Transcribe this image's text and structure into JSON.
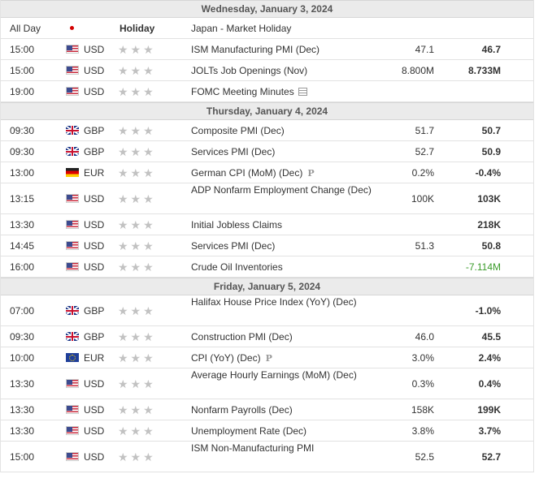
{
  "days": [
    {
      "header": "Wednesday, January 3, 2024",
      "events": [
        {
          "time": "All Day",
          "flag": "jp",
          "currency": "",
          "holiday": "Holiday",
          "event": "Japan - Market Holiday",
          "actual": "",
          "forecast": ""
        },
        {
          "time": "15:00",
          "flag": "us",
          "currency": "USD",
          "event": "ISM Manufacturing PMI (Dec)",
          "actual": "47.1",
          "forecast": "46.7"
        },
        {
          "time": "15:00",
          "flag": "us",
          "currency": "USD",
          "event": "JOLTs Job Openings (Nov)",
          "actual": "8.800M",
          "forecast": "8.733M"
        },
        {
          "time": "19:00",
          "flag": "us",
          "currency": "USD",
          "event": "FOMC Meeting Minutes",
          "actual": "",
          "forecast": "",
          "icon": "document-icon"
        }
      ]
    },
    {
      "header": "Thursday, January 4, 2024",
      "events": [
        {
          "time": "09:30",
          "flag": "gb",
          "currency": "GBP",
          "event": "Composite PMI (Dec)",
          "actual": "51.7",
          "forecast": "50.7"
        },
        {
          "time": "09:30",
          "flag": "gb",
          "currency": "GBP",
          "event": "Services PMI (Dec)",
          "actual": "52.7",
          "forecast": "50.9"
        },
        {
          "time": "13:00",
          "flag": "de",
          "currency": "EUR",
          "event": "German CPI (MoM) (Dec)",
          "actual": "0.2%",
          "forecast": "-0.4%",
          "icon": "preliminary-icon"
        },
        {
          "time": "13:15",
          "flag": "us",
          "currency": "USD",
          "event": "ADP Nonfarm Employment Change (Dec)",
          "actual": "100K",
          "forecast": "103K",
          "tall": true
        },
        {
          "time": "13:30",
          "flag": "us",
          "currency": "USD",
          "event": "Initial Jobless Claims",
          "actual": "",
          "forecast": "218K"
        },
        {
          "time": "14:45",
          "flag": "us",
          "currency": "USD",
          "event": "Services PMI (Dec)",
          "actual": "51.3",
          "forecast": "50.8"
        },
        {
          "time": "16:00",
          "flag": "us",
          "currency": "USD",
          "event": "Crude Oil Inventories",
          "actual": "",
          "forecast": "-7.114M",
          "green": true
        }
      ]
    },
    {
      "header": "Friday, January 5, 2024",
      "events": [
        {
          "time": "07:00",
          "flag": "gb",
          "currency": "GBP",
          "event": "Halifax House Price Index (YoY) (Dec)",
          "actual": "",
          "forecast": "-1.0%",
          "tall": true
        },
        {
          "time": "09:30",
          "flag": "gb",
          "currency": "GBP",
          "event": "Construction PMI (Dec)",
          "actual": "46.0",
          "forecast": "45.5"
        },
        {
          "time": "10:00",
          "flag": "eu",
          "currency": "EUR",
          "event": "CPI (YoY) (Dec)",
          "actual": "3.0%",
          "forecast": "2.4%",
          "icon": "preliminary-icon"
        },
        {
          "time": "13:30",
          "flag": "us",
          "currency": "USD",
          "event": "Average Hourly Earnings (MoM) (Dec)",
          "actual": "0.3%",
          "forecast": "0.4%",
          "tall": true
        },
        {
          "time": "13:30",
          "flag": "us",
          "currency": "USD",
          "event": "Nonfarm Payrolls (Dec)",
          "actual": "158K",
          "forecast": "199K"
        },
        {
          "time": "13:30",
          "flag": "us",
          "currency": "USD",
          "event": "Unemployment Rate (Dec)",
          "actual": "3.8%",
          "forecast": "3.7%"
        },
        {
          "time": "15:00",
          "flag": "us",
          "currency": "USD",
          "event": "ISM Non-Manufacturing PMI",
          "actual": "52.5",
          "forecast": "52.7",
          "tall": true
        }
      ]
    }
  ],
  "stars_glyph": "★★★",
  "preliminary_glyph": "P",
  "colors": {
    "positive": "#3a9b2a",
    "header_bg": "#ebebeb",
    "star": "#c2c2c2"
  }
}
